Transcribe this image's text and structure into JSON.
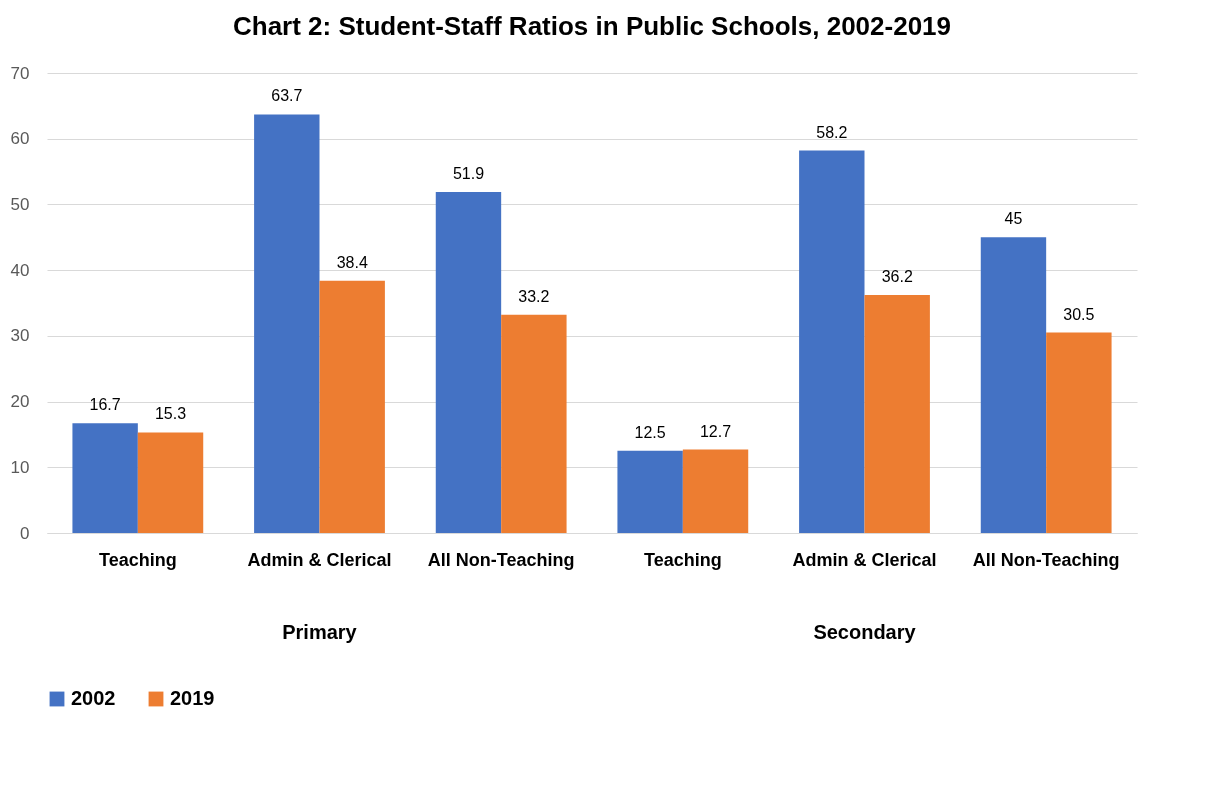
{
  "chart_data": {
    "type": "bar",
    "title": "Chart 2: Student-Staff Ratios in Public Schools, 2002-2019",
    "categories": [
      "Teaching",
      "Admin & Clerical",
      "All Non-Teaching",
      "Teaching",
      "Admin & Clerical",
      "All Non-Teaching"
    ],
    "series": [
      {
        "name": "2002",
        "color": "#4472c4",
        "values": [
          16.7,
          63.7,
          51.9,
          12.5,
          58.2,
          45
        ]
      },
      {
        "name": "2019",
        "color": "#ed7d31",
        "values": [
          15.3,
          38.4,
          33.2,
          12.7,
          36.2,
          30.5
        ]
      }
    ],
    "annotations": [
      "Primary",
      "Secondary"
    ],
    "ylim": [
      0,
      70
    ],
    "yticks": [
      0,
      10,
      20,
      30,
      40,
      50,
      60,
      70
    ],
    "grid": "y",
    "legend": "bottom",
    "data_labels": true
  }
}
